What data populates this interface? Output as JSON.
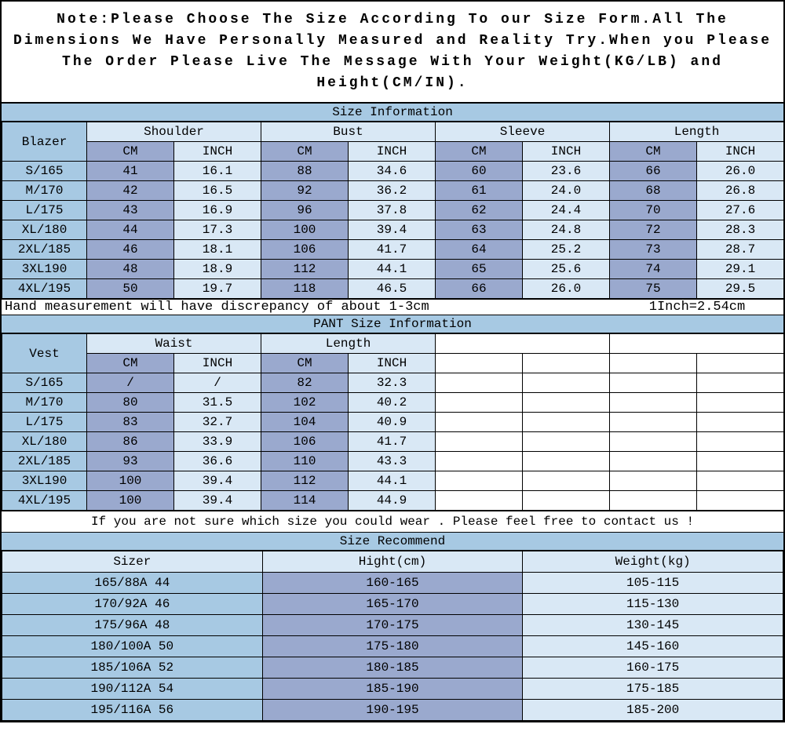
{
  "note": "Note:Please Choose The Size According To our Size Form.All The Dimensions We Have Personally Measured and Reality Try.When you Please The Order Please Live The Message With Your Weight(KG/LB)  and Height(CM/IN).",
  "section1": {
    "title": "Size Information",
    "corner": "Blazer",
    "groups": [
      "Shoulder",
      "Bust",
      "Sleeve",
      "Length"
    ],
    "units": [
      "CM",
      "INCH",
      "CM",
      "INCH",
      "CM",
      "INCH",
      "CM",
      "INCH"
    ],
    "rows": [
      {
        "size": "S/165",
        "vals": [
          "41",
          "16.1",
          "88",
          "34.6",
          "60",
          "23.6",
          "66",
          "26.0"
        ]
      },
      {
        "size": "M/170",
        "vals": [
          "42",
          "16.5",
          "92",
          "36.2",
          "61",
          "24.0",
          "68",
          "26.8"
        ]
      },
      {
        "size": "L/175",
        "vals": [
          "43",
          "16.9",
          "96",
          "37.8",
          "62",
          "24.4",
          "70",
          "27.6"
        ]
      },
      {
        "size": "XL/180",
        "vals": [
          "44",
          "17.3",
          "100",
          "39.4",
          "63",
          "24.8",
          "72",
          "28.3"
        ]
      },
      {
        "size": "2XL/185",
        "vals": [
          "46",
          "18.1",
          "106",
          "41.7",
          "64",
          "25.2",
          "73",
          "28.7"
        ]
      },
      {
        "size": "3XL190",
        "vals": [
          "48",
          "18.9",
          "112",
          "44.1",
          "65",
          "25.6",
          "74",
          "29.1"
        ]
      },
      {
        "size": "4XL/195",
        "vals": [
          "50",
          "19.7",
          "118",
          "46.5",
          "66",
          "26.0",
          "75",
          "29.5"
        ]
      }
    ]
  },
  "discrepancy_left": "Hand measurement will have discrepancy of about 1-3cm",
  "discrepancy_right": "1Inch=2.54cm",
  "section2": {
    "title": "PANT Size Information",
    "corner": "Vest",
    "groups": [
      "Waist",
      "Length",
      "",
      ""
    ],
    "units": [
      "CM",
      "INCH",
      "CM",
      "INCH",
      "",
      "",
      "",
      ""
    ],
    "rows": [
      {
        "size": "S/165",
        "vals": [
          "/",
          "/",
          "82",
          "32.3",
          "",
          "",
          "",
          ""
        ]
      },
      {
        "size": "M/170",
        "vals": [
          "80",
          "31.5",
          "102",
          "40.2",
          "",
          "",
          "",
          ""
        ]
      },
      {
        "size": "L/175",
        "vals": [
          "83",
          "32.7",
          "104",
          "40.9",
          "",
          "",
          "",
          ""
        ]
      },
      {
        "size": "XL/180",
        "vals": [
          "86",
          "33.9",
          "106",
          "41.7",
          "",
          "",
          "",
          ""
        ]
      },
      {
        "size": "2XL/185",
        "vals": [
          "93",
          "36.6",
          "110",
          "43.3",
          "",
          "",
          "",
          ""
        ]
      },
      {
        "size": "3XL190",
        "vals": [
          "100",
          "39.4",
          "112",
          "44.1",
          "",
          "",
          "",
          ""
        ]
      },
      {
        "size": "4XL/195",
        "vals": [
          "100",
          "39.4",
          "114",
          "44.9",
          "",
          "",
          "",
          ""
        ]
      }
    ]
  },
  "contact": "If you are not sure which size you could wear . Please feel free to contact us !",
  "recommend": {
    "title": "Size Recommend",
    "headers": [
      "Sizer",
      "Hight(cm)",
      "Weight(kg)"
    ],
    "rows": [
      [
        "165/88A 44",
        "160-165",
        "105-115"
      ],
      [
        "170/92A 46",
        "165-170",
        "115-130"
      ],
      [
        "175/96A 48",
        "170-175",
        "130-145"
      ],
      [
        "180/100A 50",
        "175-180",
        "145-160"
      ],
      [
        "185/106A 52",
        "180-185",
        "160-175"
      ],
      [
        "190/112A 54",
        "185-190",
        "175-185"
      ],
      [
        "195/116A 56",
        "190-195",
        "185-200"
      ]
    ]
  },
  "colors": {
    "blue_light": "#a7c9e3",
    "blue_mid": "#9aa9ce",
    "blue_pale": "#d9e8f5"
  }
}
